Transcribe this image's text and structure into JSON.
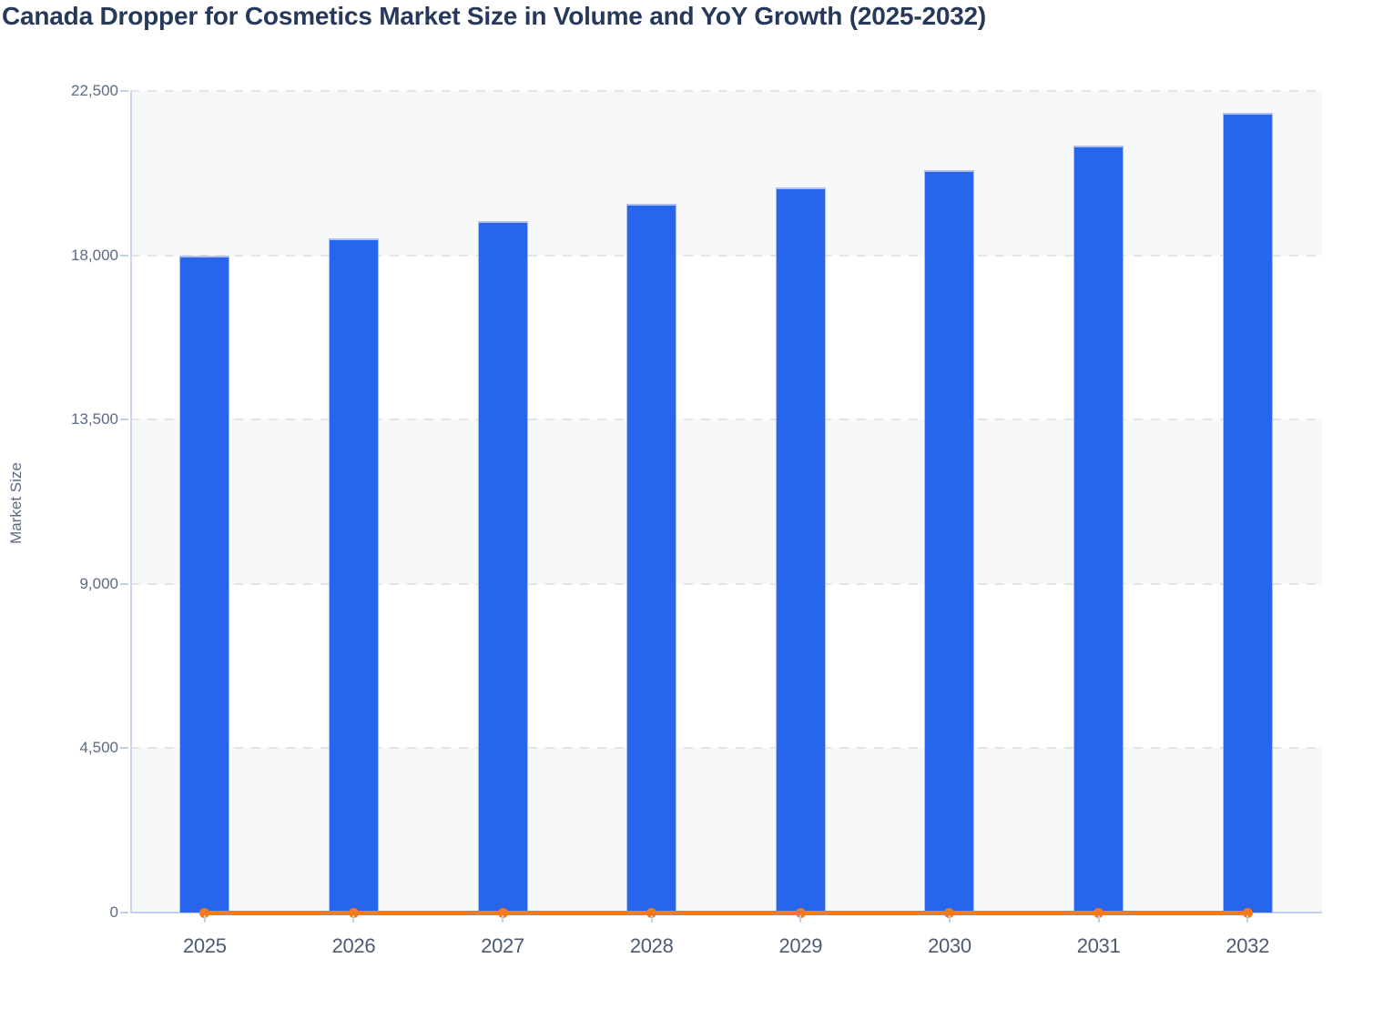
{
  "title": "Canada Dropper for Cosmetics Market Size in Volume and YoY Growth (2025-2032)",
  "colors": {
    "bar_fill": "#2765EC",
    "bar_border": "#AFC0EE",
    "line_orange": "#F57A1D",
    "title_text": "#27395B",
    "y_tick_text": "#5C6A84",
    "x_tick_text": "#4D5A73",
    "axis_label_text": "#5C6A84",
    "grid_dash": "#E2E4E9",
    "stripe_light": "#F7F8FA",
    "stripe_white": "#FFFFFF",
    "y_axis_line": "#CCD5EA",
    "x_axis_line": "#C4CFEC",
    "tick_mark": "#C5CFE3"
  },
  "chart_data": {
    "type": "bar",
    "title": "Canada Dropper for Cosmetics Market Size in Volume and YoY Growth (2025-2032)",
    "xlabel": "",
    "ylabel": "Market Size",
    "categories": [
      "2025",
      "2026",
      "2027",
      "2028",
      "2029",
      "2030",
      "2031",
      "2032"
    ],
    "series": [
      {
        "name": "Market Size",
        "type": "bar",
        "values": [
          18000,
          18470,
          18940,
          19410,
          19870,
          20340,
          21000,
          21890
        ]
      },
      {
        "name": "YoY Growth",
        "type": "line",
        "values": [
          0,
          0,
          0,
          0,
          0,
          0,
          0,
          0
        ]
      }
    ],
    "ylim": [
      0,
      22500
    ],
    "yticks": [
      0,
      4500,
      9000,
      13500,
      18000,
      22500
    ],
    "ytick_labels": [
      "0",
      "4,500",
      "9,000",
      "13,500",
      "18,000",
      "22,500"
    ],
    "grid": "horizontal-dashed-with-alternating-row-stripes",
    "legend": "none"
  }
}
